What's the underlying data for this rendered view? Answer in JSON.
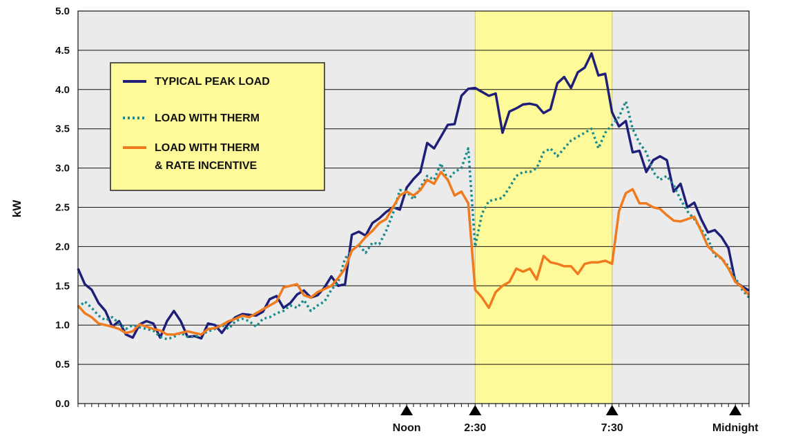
{
  "chart_data": {
    "type": "line",
    "title": "",
    "xlabel": "",
    "ylabel": "kW",
    "ylim": [
      0,
      5
    ],
    "yticks": [
      "0.0",
      "0.5",
      "1.0",
      "1.5",
      "2.0",
      "2.5",
      "3.0",
      "3.5",
      "4.0",
      "4.5",
      "5.0"
    ],
    "x_markers": [
      {
        "label": "Noon",
        "hour": 12
      },
      {
        "label": "2:30",
        "hour": 14.5
      },
      {
        "label": "7:30",
        "hour": 19.5
      },
      {
        "label": "Midnight",
        "hour": 24
      }
    ],
    "highlight_range_hours": [
      14.5,
      19.5
    ],
    "highlight_color": "#fffa99",
    "plot_background": "#ebebeb",
    "grid": true,
    "legend_position": "top-left",
    "legend_background": "#fffa99",
    "series": [
      {
        "name": "TYPICAL PEAK LOAD",
        "color": "#1f1f7a",
        "style": "solid",
        "values": [
          [
            0.0,
            1.72
          ],
          [
            0.25,
            1.52
          ],
          [
            0.5,
            1.45
          ],
          [
            0.75,
            1.28
          ],
          [
            1.0,
            1.18
          ],
          [
            1.25,
            0.98
          ],
          [
            1.5,
            1.05
          ],
          [
            1.75,
            0.88
          ],
          [
            2.0,
            0.84
          ],
          [
            2.25,
            1.01
          ],
          [
            2.5,
            1.05
          ],
          [
            2.75,
            1.02
          ],
          [
            3.0,
            0.84
          ],
          [
            3.25,
            1.05
          ],
          [
            3.5,
            1.18
          ],
          [
            3.75,
            1.05
          ],
          [
            4.0,
            0.85
          ],
          [
            4.25,
            0.86
          ],
          [
            4.5,
            0.83
          ],
          [
            4.75,
            1.02
          ],
          [
            5.0,
            1.0
          ],
          [
            5.25,
            0.9
          ],
          [
            5.5,
            1.02
          ],
          [
            5.75,
            1.1
          ],
          [
            6.0,
            1.14
          ],
          [
            6.25,
            1.13
          ],
          [
            6.5,
            1.12
          ],
          [
            6.75,
            1.17
          ],
          [
            7.0,
            1.33
          ],
          [
            7.25,
            1.37
          ],
          [
            7.5,
            1.22
          ],
          [
            7.75,
            1.28
          ],
          [
            8.0,
            1.39
          ],
          [
            8.25,
            1.44
          ],
          [
            8.5,
            1.35
          ],
          [
            8.75,
            1.38
          ],
          [
            9.0,
            1.48
          ],
          [
            9.25,
            1.62
          ],
          [
            9.5,
            1.5
          ],
          [
            9.75,
            1.52
          ],
          [
            10.0,
            2.15
          ],
          [
            10.25,
            2.19
          ],
          [
            10.5,
            2.14
          ],
          [
            10.75,
            2.3
          ],
          [
            11.0,
            2.36
          ],
          [
            11.25,
            2.44
          ],
          [
            11.5,
            2.5
          ],
          [
            11.75,
            2.47
          ],
          [
            12.0,
            2.75
          ],
          [
            12.25,
            2.86
          ],
          [
            12.5,
            2.95
          ],
          [
            12.75,
            3.32
          ],
          [
            13.0,
            3.25
          ],
          [
            13.25,
            3.4
          ],
          [
            13.5,
            3.55
          ],
          [
            13.75,
            3.56
          ],
          [
            14.0,
            3.92
          ],
          [
            14.25,
            4.01
          ],
          [
            14.5,
            4.02
          ],
          [
            14.75,
            3.97
          ],
          [
            15.0,
            3.92
          ],
          [
            15.25,
            3.95
          ],
          [
            15.5,
            3.45
          ],
          [
            15.75,
            3.72
          ],
          [
            16.0,
            3.76
          ],
          [
            16.25,
            3.81
          ],
          [
            16.5,
            3.82
          ],
          [
            16.75,
            3.8
          ],
          [
            17.0,
            3.7
          ],
          [
            17.25,
            3.75
          ],
          [
            17.5,
            4.08
          ],
          [
            17.75,
            4.16
          ],
          [
            18.0,
            4.02
          ],
          [
            18.25,
            4.22
          ],
          [
            18.5,
            4.28
          ],
          [
            18.75,
            4.46
          ],
          [
            19.0,
            4.18
          ],
          [
            19.25,
            4.2
          ],
          [
            19.5,
            3.71
          ],
          [
            19.75,
            3.53
          ],
          [
            20.0,
            3.6
          ],
          [
            20.25,
            3.2
          ],
          [
            20.5,
            3.22
          ],
          [
            20.75,
            2.95
          ],
          [
            21.0,
            3.1
          ],
          [
            21.25,
            3.15
          ],
          [
            21.5,
            3.1
          ],
          [
            21.75,
            2.7
          ],
          [
            22.0,
            2.8
          ],
          [
            22.25,
            2.5
          ],
          [
            22.5,
            2.56
          ],
          [
            22.75,
            2.35
          ],
          [
            23.0,
            2.18
          ],
          [
            23.25,
            2.21
          ],
          [
            23.5,
            2.12
          ],
          [
            23.75,
            1.98
          ],
          [
            24.0,
            1.55
          ],
          [
            24.25,
            1.49
          ],
          [
            24.5,
            1.44
          ]
        ]
      },
      {
        "name": "LOAD WITH THERM",
        "color": "#1a8c8c",
        "style": "dotted",
        "values": [
          [
            0.0,
            1.22
          ],
          [
            0.25,
            1.3
          ],
          [
            0.5,
            1.22
          ],
          [
            0.75,
            1.12
          ],
          [
            1.0,
            1.06
          ],
          [
            1.25,
            1.1
          ],
          [
            1.5,
            1.02
          ],
          [
            1.75,
            0.95
          ],
          [
            2.0,
            1.0
          ],
          [
            2.25,
            0.97
          ],
          [
            2.5,
            0.95
          ],
          [
            2.75,
            0.93
          ],
          [
            3.0,
            0.85
          ],
          [
            3.25,
            0.82
          ],
          [
            3.5,
            0.85
          ],
          [
            3.75,
            0.9
          ],
          [
            4.0,
            0.85
          ],
          [
            4.25,
            0.85
          ],
          [
            4.5,
            0.88
          ],
          [
            4.75,
            0.92
          ],
          [
            5.0,
            0.95
          ],
          [
            5.25,
            1.0
          ],
          [
            5.5,
            0.95
          ],
          [
            5.75,
            1.05
          ],
          [
            6.0,
            1.08
          ],
          [
            6.25,
            1.05
          ],
          [
            6.5,
            0.98
          ],
          [
            6.75,
            1.08
          ],
          [
            7.0,
            1.1
          ],
          [
            7.25,
            1.15
          ],
          [
            7.5,
            1.18
          ],
          [
            7.75,
            1.25
          ],
          [
            8.0,
            1.22
          ],
          [
            8.25,
            1.32
          ],
          [
            8.5,
            1.18
          ],
          [
            8.75,
            1.25
          ],
          [
            9.0,
            1.3
          ],
          [
            9.25,
            1.45
          ],
          [
            9.5,
            1.55
          ],
          [
            9.75,
            1.85
          ],
          [
            10.0,
            1.95
          ],
          [
            10.25,
            2.02
          ],
          [
            10.5,
            1.92
          ],
          [
            10.75,
            2.05
          ],
          [
            11.0,
            2.03
          ],
          [
            11.25,
            2.2
          ],
          [
            11.5,
            2.42
          ],
          [
            11.75,
            2.72
          ],
          [
            12.0,
            2.7
          ],
          [
            12.25,
            2.6
          ],
          [
            12.5,
            2.75
          ],
          [
            12.75,
            2.9
          ],
          [
            13.0,
            2.85
          ],
          [
            13.25,
            3.06
          ],
          [
            13.5,
            2.85
          ],
          [
            13.75,
            2.95
          ],
          [
            14.0,
            3.0
          ],
          [
            14.25,
            3.25
          ],
          [
            14.5,
            2.0
          ],
          [
            14.75,
            2.42
          ],
          [
            15.0,
            2.58
          ],
          [
            15.25,
            2.6
          ],
          [
            15.5,
            2.62
          ],
          [
            15.75,
            2.75
          ],
          [
            16.0,
            2.9
          ],
          [
            16.25,
            2.95
          ],
          [
            16.5,
            2.95
          ],
          [
            16.75,
            3.0
          ],
          [
            17.0,
            3.2
          ],
          [
            17.25,
            3.25
          ],
          [
            17.5,
            3.15
          ],
          [
            17.75,
            3.25
          ],
          [
            18.0,
            3.35
          ],
          [
            18.25,
            3.4
          ],
          [
            18.5,
            3.45
          ],
          [
            18.75,
            3.5
          ],
          [
            19.0,
            3.25
          ],
          [
            19.25,
            3.45
          ],
          [
            19.5,
            3.55
          ],
          [
            19.75,
            3.65
          ],
          [
            20.0,
            3.85
          ],
          [
            20.25,
            3.5
          ],
          [
            20.5,
            3.32
          ],
          [
            20.75,
            3.2
          ],
          [
            21.0,
            2.95
          ],
          [
            21.25,
            2.85
          ],
          [
            21.5,
            2.9
          ],
          [
            21.75,
            2.78
          ],
          [
            22.0,
            2.6
          ],
          [
            22.25,
            2.45
          ],
          [
            22.5,
            2.35
          ],
          [
            22.75,
            2.22
          ],
          [
            23.0,
            2.1
          ],
          [
            23.25,
            1.88
          ],
          [
            23.5,
            1.85
          ],
          [
            23.75,
            1.75
          ],
          [
            24.0,
            1.6
          ],
          [
            24.25,
            1.45
          ],
          [
            24.5,
            1.35
          ]
        ]
      },
      {
        "name": "LOAD WITH THERM & RATE INCENTIVE",
        "label_lines": [
          "LOAD WITH THERM",
          "& RATE INCENTIVE"
        ],
        "color": "#f07a1e",
        "style": "solid",
        "values": [
          [
            0.0,
            1.25
          ],
          [
            0.25,
            1.15
          ],
          [
            0.5,
            1.1
          ],
          [
            0.75,
            1.02
          ],
          [
            1.0,
            1.0
          ],
          [
            1.25,
            0.98
          ],
          [
            1.5,
            0.95
          ],
          [
            1.75,
            0.9
          ],
          [
            2.0,
            0.92
          ],
          [
            2.25,
            1.01
          ],
          [
            2.5,
            0.98
          ],
          [
            2.75,
            0.95
          ],
          [
            3.0,
            0.93
          ],
          [
            3.25,
            0.88
          ],
          [
            3.5,
            0.88
          ],
          [
            3.75,
            0.9
          ],
          [
            4.0,
            0.92
          ],
          [
            4.25,
            0.9
          ],
          [
            4.5,
            0.88
          ],
          [
            4.75,
            0.95
          ],
          [
            5.0,
            0.96
          ],
          [
            5.25,
            1.0
          ],
          [
            5.5,
            1.05
          ],
          [
            5.75,
            1.08
          ],
          [
            6.0,
            1.12
          ],
          [
            6.25,
            1.1
          ],
          [
            6.5,
            1.15
          ],
          [
            6.75,
            1.2
          ],
          [
            7.0,
            1.25
          ],
          [
            7.25,
            1.3
          ],
          [
            7.5,
            1.48
          ],
          [
            7.75,
            1.5
          ],
          [
            8.0,
            1.52
          ],
          [
            8.25,
            1.38
          ],
          [
            8.5,
            1.35
          ],
          [
            8.75,
            1.42
          ],
          [
            9.0,
            1.46
          ],
          [
            9.25,
            1.5
          ],
          [
            9.5,
            1.6
          ],
          [
            9.75,
            1.72
          ],
          [
            10.0,
            1.95
          ],
          [
            10.25,
            2.02
          ],
          [
            10.5,
            2.12
          ],
          [
            10.75,
            2.2
          ],
          [
            11.0,
            2.3
          ],
          [
            11.25,
            2.35
          ],
          [
            11.5,
            2.5
          ],
          [
            11.75,
            2.65
          ],
          [
            12.0,
            2.7
          ],
          [
            12.25,
            2.65
          ],
          [
            12.5,
            2.72
          ],
          [
            12.75,
            2.85
          ],
          [
            13.0,
            2.8
          ],
          [
            13.25,
            2.95
          ],
          [
            13.5,
            2.85
          ],
          [
            13.75,
            2.65
          ],
          [
            14.0,
            2.7
          ],
          [
            14.25,
            2.55
          ],
          [
            14.5,
            1.45
          ],
          [
            14.75,
            1.35
          ],
          [
            15.0,
            1.22
          ],
          [
            15.25,
            1.42
          ],
          [
            15.5,
            1.5
          ],
          [
            15.75,
            1.55
          ],
          [
            16.0,
            1.72
          ],
          [
            16.25,
            1.68
          ],
          [
            16.5,
            1.72
          ],
          [
            16.75,
            1.58
          ],
          [
            17.0,
            1.88
          ],
          [
            17.25,
            1.8
          ],
          [
            17.5,
            1.78
          ],
          [
            17.75,
            1.75
          ],
          [
            18.0,
            1.75
          ],
          [
            18.25,
            1.65
          ],
          [
            18.5,
            1.78
          ],
          [
            18.75,
            1.8
          ],
          [
            19.0,
            1.8
          ],
          [
            19.25,
            1.82
          ],
          [
            19.5,
            1.78
          ],
          [
            19.75,
            2.45
          ],
          [
            20.0,
            2.68
          ],
          [
            20.25,
            2.73
          ],
          [
            20.5,
            2.55
          ],
          [
            20.75,
            2.55
          ],
          [
            21.0,
            2.5
          ],
          [
            21.25,
            2.48
          ],
          [
            21.5,
            2.4
          ],
          [
            21.75,
            2.33
          ],
          [
            22.0,
            2.32
          ],
          [
            22.25,
            2.35
          ],
          [
            22.5,
            2.38
          ],
          [
            22.75,
            2.2
          ],
          [
            23.0,
            2.0
          ],
          [
            23.25,
            1.92
          ],
          [
            23.5,
            1.85
          ],
          [
            23.75,
            1.72
          ],
          [
            24.0,
            1.55
          ],
          [
            24.25,
            1.48
          ],
          [
            24.5,
            1.38
          ]
        ]
      }
    ]
  }
}
